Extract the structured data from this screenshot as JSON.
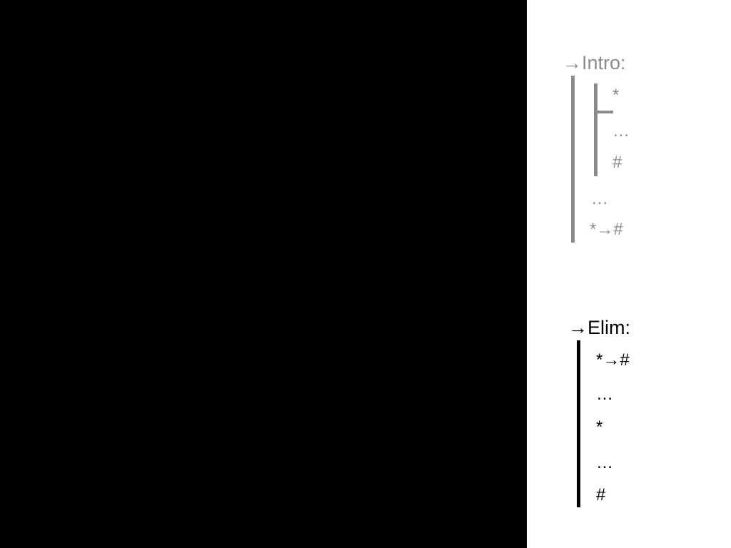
{
  "intro": {
    "heading": "→Intro:",
    "subproof": {
      "assumption": "*",
      "ellipsis": "…",
      "conclusion": "#"
    },
    "ellipsis": "…",
    "result": "*→#"
  },
  "elim": {
    "heading": "→Elim:",
    "lines": [
      "*→#",
      "…",
      "*",
      "…",
      "#"
    ]
  },
  "colors": {
    "intro_gray": "#8a8a8a",
    "elim_black": "#000000",
    "left_panel": "#000000",
    "right_panel": "#ffffff"
  }
}
